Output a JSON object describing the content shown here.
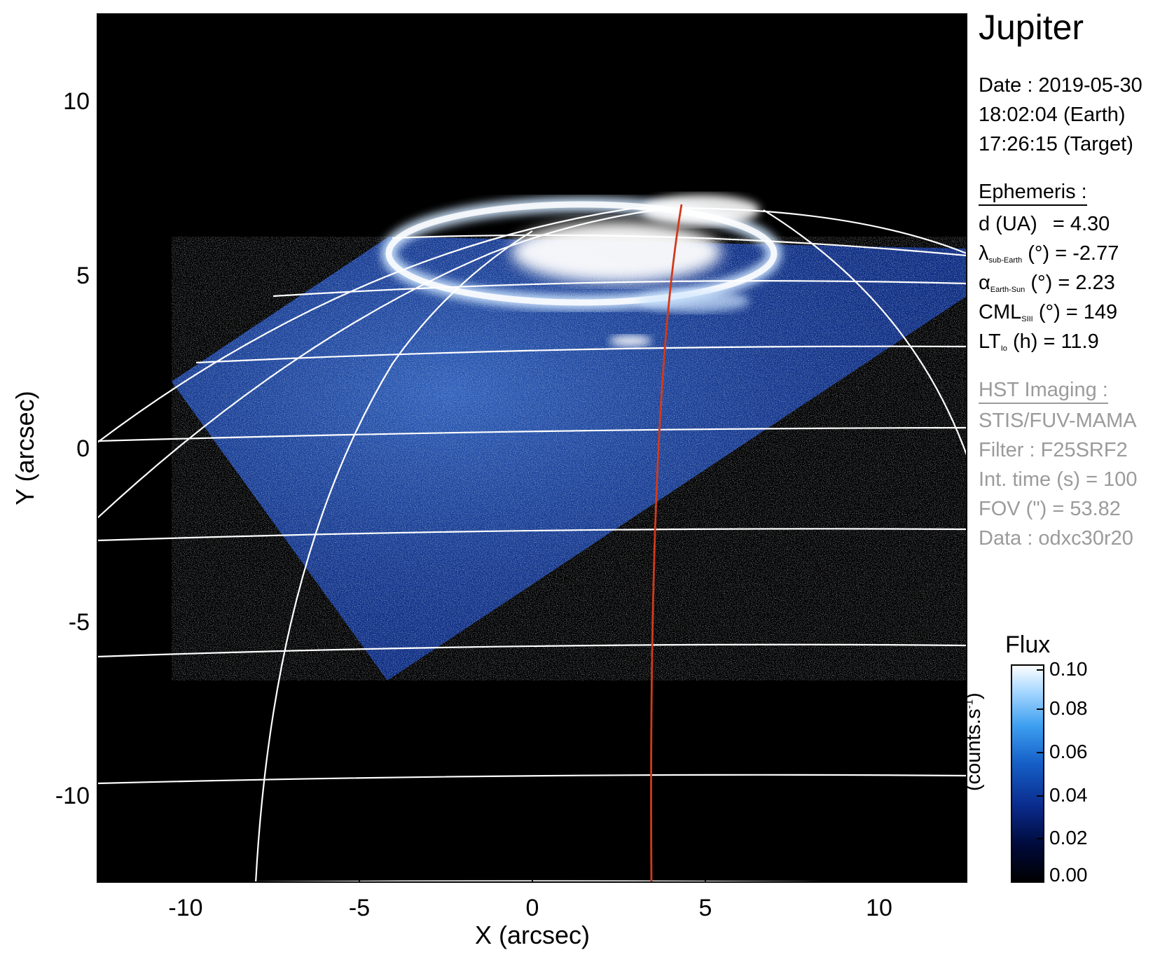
{
  "figure": {
    "title": "Jupiter",
    "date_lines": [
      "Date : 2019-05-30",
      "18:02:04 (Earth)",
      "17:26:15 (Target)"
    ],
    "ephemeris": {
      "heading": "Ephemeris :",
      "d_label": "d (UA)",
      "d_value": "= 4.30",
      "lat_symbol": "λ",
      "lat_sub": "sub-Earth",
      "lat_rest": "(°) = -2.77",
      "phase_symbol": "α",
      "phase_sub": "Earth-Sun",
      "phase_rest": "(°) = 2.23",
      "cml_symbol": "CML",
      "cml_sub": "SIII",
      "cml_rest": "(°) = 149",
      "lt_symbol": "LT",
      "lt_sub": "Io",
      "lt_rest": "(h) = 11.9"
    },
    "hst": {
      "heading": "HST Imaging :",
      "lines": [
        "STIS/FUV-MAMA",
        "Filter : F25SRF2",
        "Int. time (s) = 100",
        "FOV (\") = 53.82",
        "Data : odxc30r20"
      ]
    },
    "axes": {
      "xlabel": "X (arcsec)",
      "ylabel": "Y (arcsec)",
      "xlim": [
        -12.5,
        12.5
      ],
      "ylim": [
        -12.5,
        12.5
      ],
      "xticks": [
        "-10",
        "-5",
        "0",
        "5",
        "10"
      ],
      "yticks": [
        "10",
        "5",
        "0",
        "-5",
        "-10"
      ]
    },
    "colorbar": {
      "title": "Flux",
      "unit": "(counts.s",
      "unit_sup": "-1",
      "unit_end": ")",
      "range": [
        0.0,
        0.1
      ],
      "ticks": [
        "0.10",
        "0.08",
        "0.06",
        "0.04",
        "0.02",
        "0.00"
      ],
      "colors": [
        "#000000",
        "#000a3a",
        "#0a2b8c",
        "#1560c8",
        "#3d9ff0",
        "#a8d8ff",
        "#ffffff"
      ]
    },
    "colors": {
      "background": "#000000",
      "grid": "#ffffff",
      "io_footprint": "#d13a1a",
      "frame_fill": "#0a2f8a"
    }
  }
}
